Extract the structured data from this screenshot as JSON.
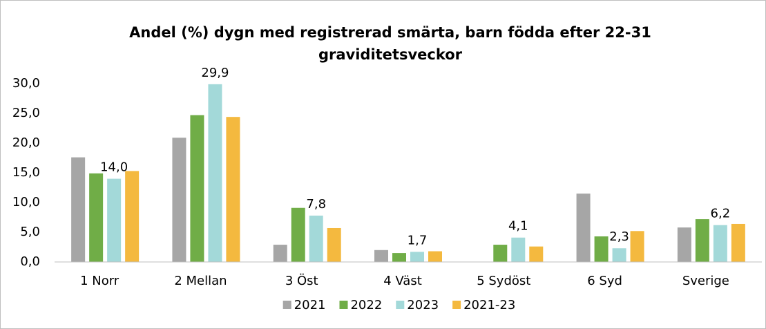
{
  "chart_data": {
    "type": "bar",
    "title": [
      "Andel (%) dygn med registrerad smärta, barn födda efter 22-31",
      "graviditetsveckor"
    ],
    "categories": [
      "1 Norr",
      "2 Mellan",
      "3 Öst",
      "4 Väst",
      "5 Sydöst",
      "6 Syd",
      "Sverige"
    ],
    "series": [
      {
        "name": "2021",
        "color": "#a6a6a6",
        "values": [
          17.6,
          20.9,
          2.9,
          2.0,
          null,
          11.5,
          5.8
        ]
      },
      {
        "name": "2022",
        "color": "#70ad47",
        "values": [
          14.9,
          24.7,
          9.1,
          1.5,
          2.9,
          4.3,
          7.2
        ]
      },
      {
        "name": "2023",
        "color": "#a3d9d9",
        "values": [
          14.0,
          29.9,
          7.8,
          1.7,
          4.1,
          2.3,
          6.2
        ],
        "value_labels": [
          "14,0",
          "29,9",
          "7,8",
          "1,7",
          "4,1",
          "2,3",
          "6,2"
        ]
      },
      {
        "name": "2021-23",
        "color": "#f4b93f",
        "values": [
          15.3,
          24.4,
          5.7,
          1.8,
          2.6,
          5.2,
          6.4
        ]
      }
    ],
    "ylim": [
      0,
      30
    ],
    "yticks": [
      {
        "value": 0,
        "label": "0,0"
      },
      {
        "value": 5,
        "label": "5,0"
      },
      {
        "value": 10,
        "label": "10,0"
      },
      {
        "value": 15,
        "label": "15,0"
      },
      {
        "value": 20,
        "label": "20,0"
      },
      {
        "value": 25,
        "label": "25,0"
      },
      {
        "value": 30,
        "label": "30,0"
      }
    ],
    "grid": false,
    "legend": "bottom"
  }
}
